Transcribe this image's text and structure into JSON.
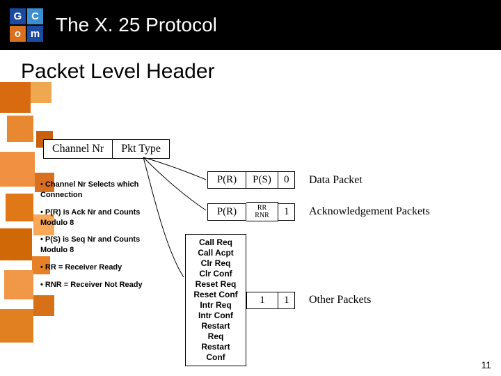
{
  "header": {
    "title": "The X. 25 Protocol",
    "logo": [
      "G",
      "C",
      "o",
      "m"
    ]
  },
  "subtitle": "Packet Level Header",
  "source_table": {
    "cells": [
      "Channel Nr",
      "Pkt Type"
    ]
  },
  "rows": {
    "data": {
      "cells": [
        "P(R)",
        "P(S)",
        "0"
      ],
      "label": "Data Packet"
    },
    "ack": {
      "cells": [
        "P(R)",
        "RR\nRNR",
        "1"
      ],
      "label": "Acknowledgement Packets"
    },
    "other": {
      "list": "Call Req\nCall Acpt\nClr Req\nClr Conf\nReset Req\nReset Conf\nIntr Req\nIntr Conf\nRestart Req\nRestart Conf",
      "cells": [
        "1",
        "1"
      ],
      "label": "Other Packets"
    }
  },
  "notes": [
    "• Channel Nr Selects which Connection",
    "• P(R) is Ack Nr and Counts Modulo 8",
    "• P(S) is Seq Nr and Counts Modulo 8",
    "• RR = Receiver Ready",
    "• RNR = Receiver Not Ready"
  ],
  "page": "11",
  "colors": {
    "orange": "#e07b1a",
    "black": "#000000",
    "blue1": "#1a4ba0",
    "blue2": "#3a8fd0"
  }
}
